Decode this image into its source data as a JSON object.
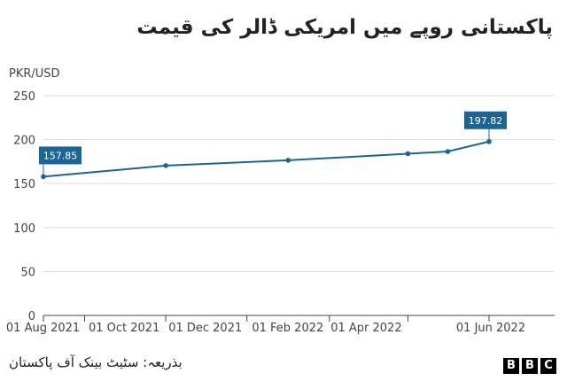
{
  "chart_data": {
    "type": "line",
    "title": "پاکستانی روپے میں امریکی ڈالر کی قیمت",
    "ylabel": "PKR/USD",
    "xlabel": "",
    "ylim": [
      0,
      250
    ],
    "xlim": [
      "2021-07-01",
      "2022-06-01"
    ],
    "y_ticks": [
      0,
      50,
      100,
      150,
      200,
      250
    ],
    "x_ticks": [
      {
        "date": "2021-08-01",
        "label": "01 Aug 2021"
      },
      {
        "date": "2021-10-01",
        "label": "01 Oct 2021"
      },
      {
        "date": "2021-12-01",
        "label": "01 Dec 2021"
      },
      {
        "date": "2022-02-01",
        "label": "01 Feb 2022"
      },
      {
        "date": "2022-04-01",
        "label": "01 Apr 2022"
      },
      {
        "date": "2022-06-01",
        "label": "01 Jun 2022"
      }
    ],
    "series": [
      {
        "name": "",
        "color": "#1a6496",
        "points": [
          {
            "x": "2021-07-01",
            "y": 157.85
          },
          {
            "x": "2021-10-01",
            "y": 170.5
          },
          {
            "x": "2022-01-01",
            "y": 176.5
          },
          {
            "x": "2022-04-01",
            "y": 184
          },
          {
            "x": "2022-05-01",
            "y": 186.5
          },
          {
            "x": "2022-06-01",
            "y": 197.82
          }
        ]
      }
    ],
    "annotations": [
      {
        "x": "2021-07-01",
        "y": 157.85,
        "label": "157.85"
      },
      {
        "x": "2022-06-01",
        "y": 197.82,
        "label": "197.82"
      }
    ],
    "grid": true,
    "legend": "none"
  },
  "footer": {
    "source": "بذریعہ: سٹیٹ بینک آف پاکستان",
    "brand": [
      "B",
      "B",
      "C"
    ]
  }
}
